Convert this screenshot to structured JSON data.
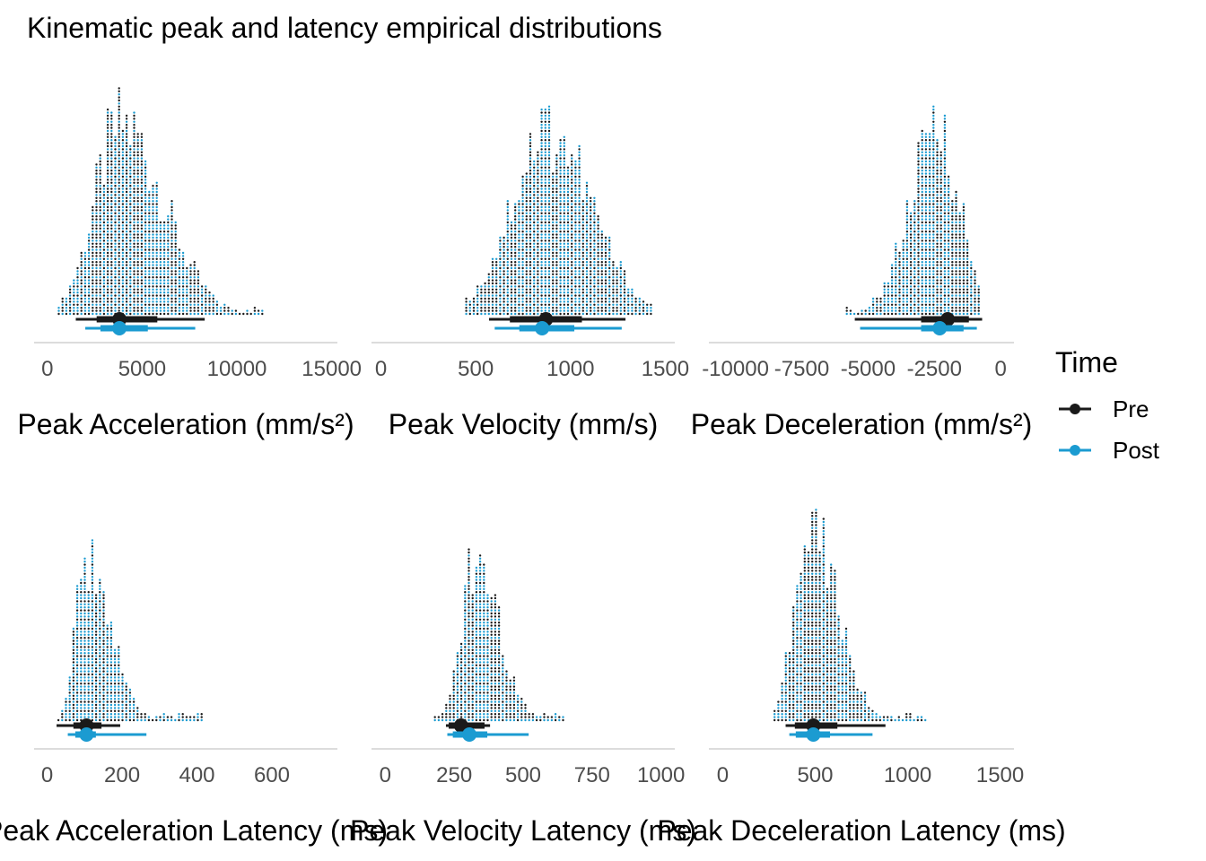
{
  "title": "Kinematic peak and latency empirical distributions",
  "legend": {
    "title": "Time",
    "placement": "right",
    "entries": [
      {
        "label": "Pre",
        "color": "#1a1a1a"
      },
      {
        "label": "Post",
        "color": "#1b9bd1"
      }
    ]
  },
  "chart_data": [
    {
      "type": "dotplot",
      "xlabel": "Peak Acceleration (mm/s²)",
      "xlim": [
        -700,
        15300
      ],
      "ticks": [
        0,
        5000,
        10000,
        15000
      ],
      "tick_labels": [
        "0",
        "5000",
        "10000",
        "15000"
      ],
      "series": [
        {
          "name": "Pre",
          "point": 3800,
          "interval_66": [
            2600,
            5800
          ],
          "interval_95": [
            1500,
            8300
          ]
        },
        {
          "name": "Post",
          "point": 3800,
          "interval_66": [
            2800,
            5300
          ],
          "interval_95": [
            2000,
            7800
          ]
        }
      ]
    },
    {
      "type": "dotplot",
      "xlabel": "Peak Velocity (mm/s)",
      "xlim": [
        -50,
        1550
      ],
      "ticks": [
        0,
        500,
        1000,
        1500
      ],
      "tick_labels": [
        "0",
        "500",
        "1000",
        "1500"
      ],
      "series": [
        {
          "name": "Pre",
          "point": 870,
          "interval_66": [
            680,
            1060
          ],
          "interval_95": [
            570,
            1290
          ]
        },
        {
          "name": "Post",
          "point": 850,
          "interval_66": [
            730,
            1020
          ],
          "interval_95": [
            600,
            1270
          ]
        }
      ]
    },
    {
      "type": "dotplot",
      "xlabel": "Peak Deceleration (mm/s²)",
      "xlim": [
        -11000,
        500
      ],
      "ticks": [
        -10000,
        -7500,
        -5000,
        -2500,
        0
      ],
      "tick_labels": [
        "-10000",
        "-7500",
        "-5000",
        "-2500",
        "0"
      ],
      "series": [
        {
          "name": "Pre",
          "point": -2000,
          "interval_66": [
            -3000,
            -1200
          ],
          "interval_95": [
            -5500,
            -700
          ]
        },
        {
          "name": "Post",
          "point": -2300,
          "interval_66": [
            -3000,
            -1400
          ],
          "interval_95": [
            -5300,
            -900
          ]
        }
      ]
    },
    {
      "type": "dotplot",
      "xlabel": "Peak Acceleration Latency (ms)",
      "xlim": [
        -35,
        775
      ],
      "ticks": [
        0,
        200,
        400,
        600
      ],
      "tick_labels": [
        "0",
        "200",
        "400",
        "600"
      ],
      "series": [
        {
          "name": "Pre",
          "point": 105,
          "interval_66": [
            70,
            145
          ],
          "interval_95": [
            25,
            195
          ]
        },
        {
          "name": "Post",
          "point": 105,
          "interval_66": [
            75,
            130
          ],
          "interval_95": [
            55,
            265
          ]
        }
      ]
    },
    {
      "type": "dotplot",
      "xlabel": "Peak Velocity Latency (ms)",
      "xlim": [
        -50,
        1050
      ],
      "ticks": [
        0,
        250,
        500,
        750,
        1000
      ],
      "tick_labels": [
        "0",
        "250",
        "500",
        "750",
        "1000"
      ],
      "series": [
        {
          "name": "Pre",
          "point": 275,
          "interval_66": [
            230,
            360
          ],
          "interval_95": [
            220,
            380
          ]
        },
        {
          "name": "Post",
          "point": 305,
          "interval_66": [
            245,
            370
          ],
          "interval_95": [
            225,
            520
          ]
        }
      ]
    },
    {
      "type": "dotplot",
      "xlabel": "Peak Deceleration Latency (ms)",
      "xlim": [
        -75,
        1575
      ],
      "ticks": [
        0,
        500,
        1000,
        1500
      ],
      "tick_labels": [
        "0",
        "500",
        "1000",
        "1500"
      ],
      "series": [
        {
          "name": "Pre",
          "point": 490,
          "interval_66": [
            390,
            620
          ],
          "interval_95": [
            340,
            880
          ]
        },
        {
          "name": "Post",
          "point": 490,
          "interval_66": [
            395,
            580
          ],
          "interval_95": [
            360,
            810
          ]
        }
      ]
    }
  ]
}
